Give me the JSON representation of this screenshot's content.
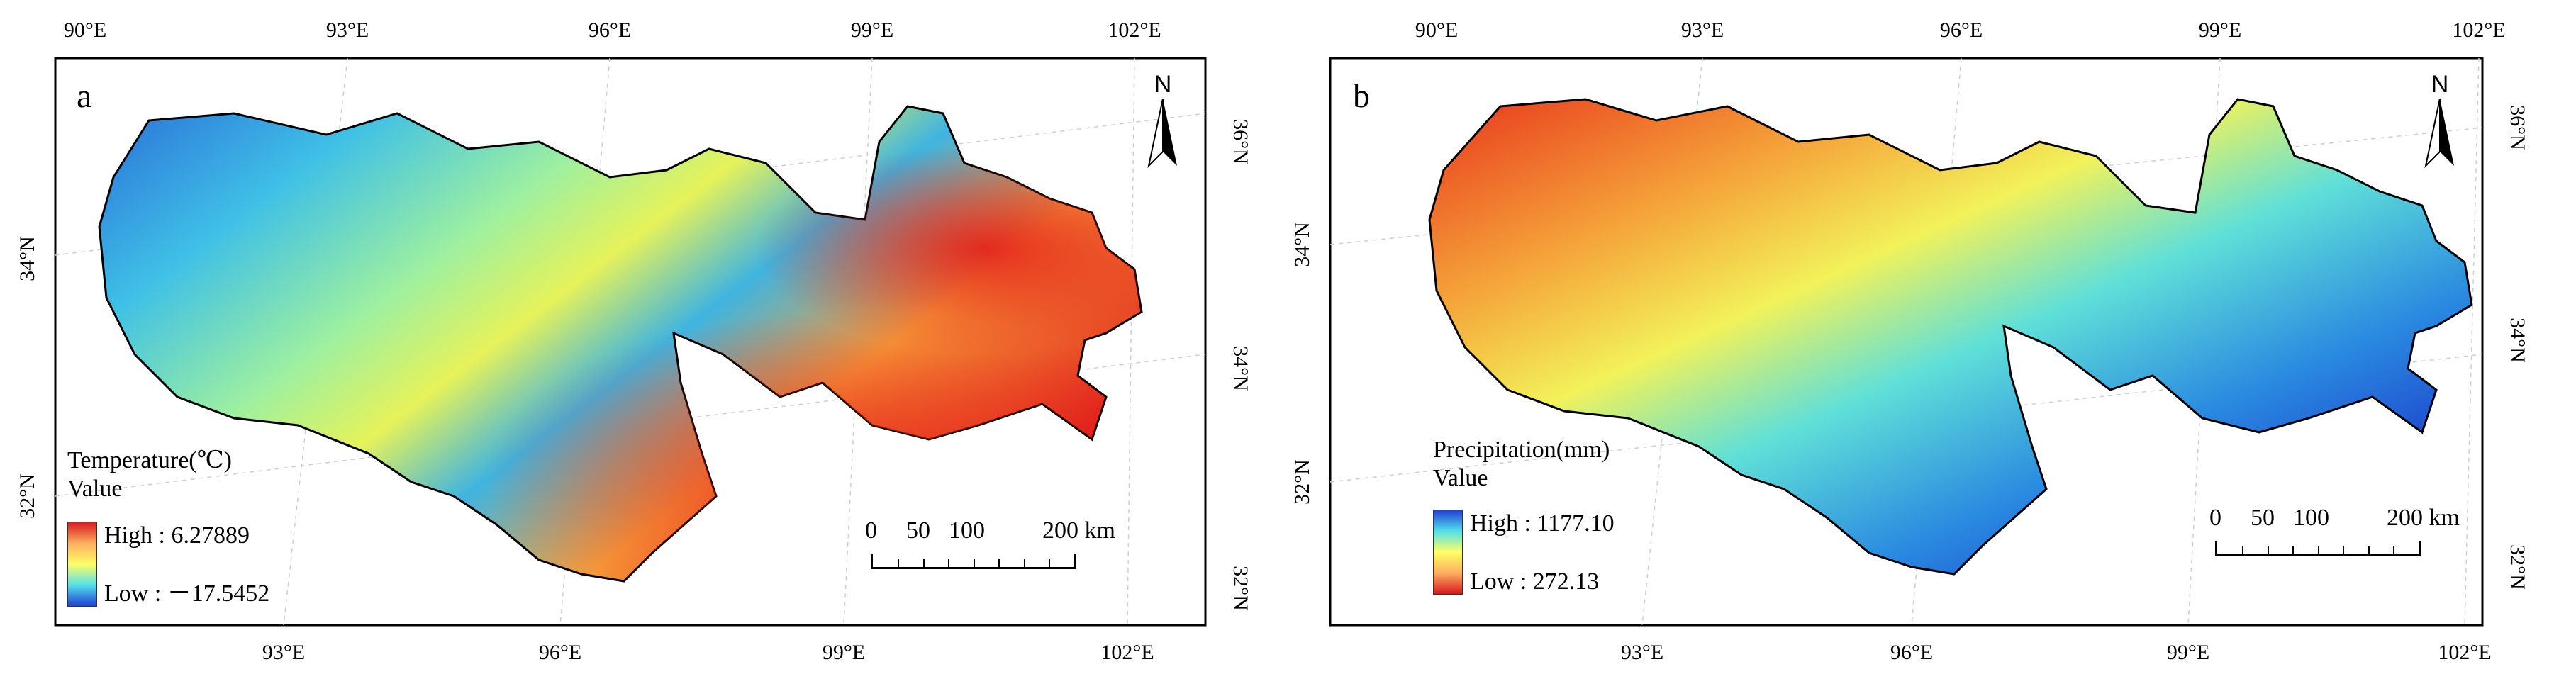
{
  "panels": [
    {
      "label": "a",
      "top_ticks": [
        "90°E",
        "93°E",
        "96°E",
        "99°E",
        "102°E"
      ],
      "bottom_ticks": [
        "93°E",
        "96°E",
        "99°E",
        "102°E"
      ],
      "left_ticks": [
        "34°N",
        "32°N"
      ],
      "right_ticks": [
        "36°N",
        "34°N",
        "32°N"
      ],
      "legend": {
        "title": "Temperature(℃)",
        "subtitle": "Value",
        "high": "High : 6.27889",
        "low": "Low : －17.5452",
        "colors": [
          "#d7191c",
          "#fdae61",
          "#ffff66",
          "#54e0e8",
          "#1f3fd6"
        ]
      },
      "scale": {
        "labels": [
          "0",
          "50",
          "100",
          "200 km"
        ]
      },
      "north": "N"
    },
    {
      "label": "b",
      "top_ticks": [
        "90°E",
        "93°E",
        "96°E",
        "99°E",
        "102°E"
      ],
      "bottom_ticks": [
        "93°E",
        "96°E",
        "99°E",
        "102°E"
      ],
      "left_ticks": [
        "34°N",
        "32°N"
      ],
      "right_ticks": [
        "36°N",
        "34°N",
        "32°N"
      ],
      "legend": {
        "title": "Precipitation(mm)",
        "subtitle": "Value",
        "high": "High : 1177.10",
        "low": "Low : 272.13",
        "colors": [
          "#1f3fd6",
          "#54e0e8",
          "#ffff66",
          "#fdae61",
          "#d7191c"
        ]
      },
      "scale": {
        "labels": [
          "0",
          "50",
          "100",
          "200 km"
        ]
      },
      "north": "N"
    }
  ]
}
